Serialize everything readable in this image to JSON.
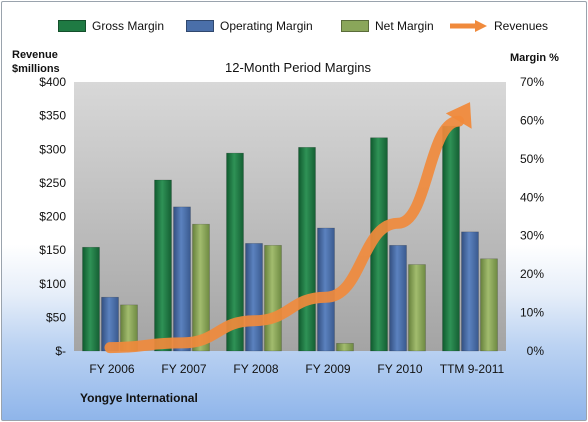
{
  "legend": {
    "gross": "Gross Margin",
    "operating": "Operating Margin",
    "net": "Net Margin",
    "revenues": "Revenues"
  },
  "axes": {
    "left_title_line1": "Revenue",
    "left_title_line2": "$millions",
    "right_title": "Margin  %"
  },
  "footer": {
    "company": "Yongye International"
  },
  "colors": {
    "gross": "#1f7a43",
    "operating": "#4a6fa9",
    "net": "#8aa65a",
    "revenues": "#f08a3c"
  },
  "chart_data": {
    "type": "bar",
    "title": "12-Month Period Margins",
    "categories": [
      "FY 2006",
      "FY 2007",
      "FY 2008",
      "FY 2009",
      "FY 2010",
      "TTM 9-2011"
    ],
    "series": [
      {
        "name": "Gross Margin",
        "axis": "right",
        "values": [
          27,
          44.5,
          51.5,
          53,
          55.5,
          58.5
        ]
      },
      {
        "name": "Operating Margin",
        "axis": "right",
        "values": [
          14,
          37.5,
          28,
          32,
          27.5,
          31
        ]
      },
      {
        "name": "Net Margin",
        "axis": "right",
        "values": [
          12,
          33,
          27.5,
          2,
          22.5,
          24
        ]
      },
      {
        "name": "Revenues",
        "axis": "left",
        "type": "line",
        "values": [
          5,
          12,
          45,
          80,
          190,
          370
        ]
      }
    ],
    "left_axis": {
      "ylim": [
        0,
        400
      ],
      "ticks": [
        "$-",
        "$50",
        "$100",
        "$150",
        "$200",
        "$250",
        "$300",
        "$350",
        "$400"
      ]
    },
    "right_axis": {
      "ylim": [
        0,
        70
      ],
      "ticks": [
        "0%",
        "10%",
        "20%",
        "30%",
        "40%",
        "50%",
        "60%",
        "70%"
      ]
    },
    "grid": false,
    "legend_position": "top"
  }
}
